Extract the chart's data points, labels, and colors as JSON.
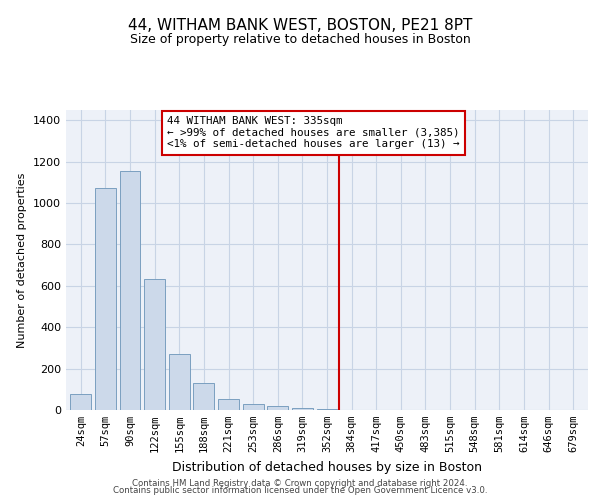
{
  "title": "44, WITHAM BANK WEST, BOSTON, PE21 8PT",
  "subtitle": "Size of property relative to detached houses in Boston",
  "xlabel": "Distribution of detached houses by size in Boston",
  "ylabel": "Number of detached properties",
  "categories": [
    "24sqm",
    "57sqm",
    "90sqm",
    "122sqm",
    "155sqm",
    "188sqm",
    "221sqm",
    "253sqm",
    "286sqm",
    "319sqm",
    "352sqm",
    "384sqm",
    "417sqm",
    "450sqm",
    "483sqm",
    "515sqm",
    "548sqm",
    "581sqm",
    "614sqm",
    "646sqm",
    "679sqm"
  ],
  "bar_values": [
    75,
    1075,
    1155,
    635,
    270,
    130,
    55,
    30,
    20,
    10,
    5,
    0,
    0,
    0,
    0,
    0,
    0,
    0,
    0,
    0,
    0
  ],
  "bar_color": "#ccd9ea",
  "bar_edge_color": "#7a9fc0",
  "grid_color": "#c8d4e5",
  "bg_color": "#edf1f8",
  "vline_x": 10.5,
  "vline_color": "#cc0000",
  "annotation_text": "44 WITHAM BANK WEST: 335sqm\n← >99% of detached houses are smaller (3,385)\n<1% of semi-detached houses are larger (13) →",
  "annotation_box_color": "#cc0000",
  "ylim": [
    0,
    1450
  ],
  "yticks": [
    0,
    200,
    400,
    600,
    800,
    1000,
    1200,
    1400
  ],
  "footer1": "Contains HM Land Registry data © Crown copyright and database right 2024.",
  "footer2": "Contains public sector information licensed under the Open Government Licence v3.0.",
  "title_fontsize": 11,
  "subtitle_fontsize": 9,
  "xlabel_fontsize": 9,
  "ylabel_fontsize": 8,
  "tick_fontsize": 8,
  "xtick_fontsize": 7.5
}
